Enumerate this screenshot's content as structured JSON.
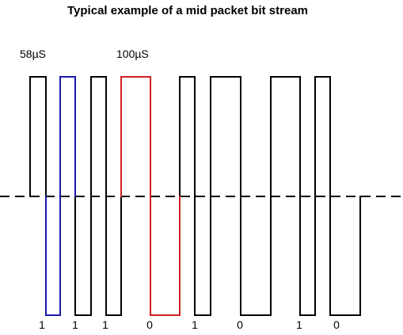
{
  "title": "Typical example of a mid packet bit stream",
  "annotations": {
    "short_period": "58µS",
    "long_period": "100µS"
  },
  "bits": [
    "1",
    "1",
    "1",
    "0",
    "1",
    "0",
    "1",
    "0"
  ],
  "colors": {
    "default": "#000000",
    "highlight_one": "#1a1aa8",
    "highlight_zero": "#d42020"
  }
}
